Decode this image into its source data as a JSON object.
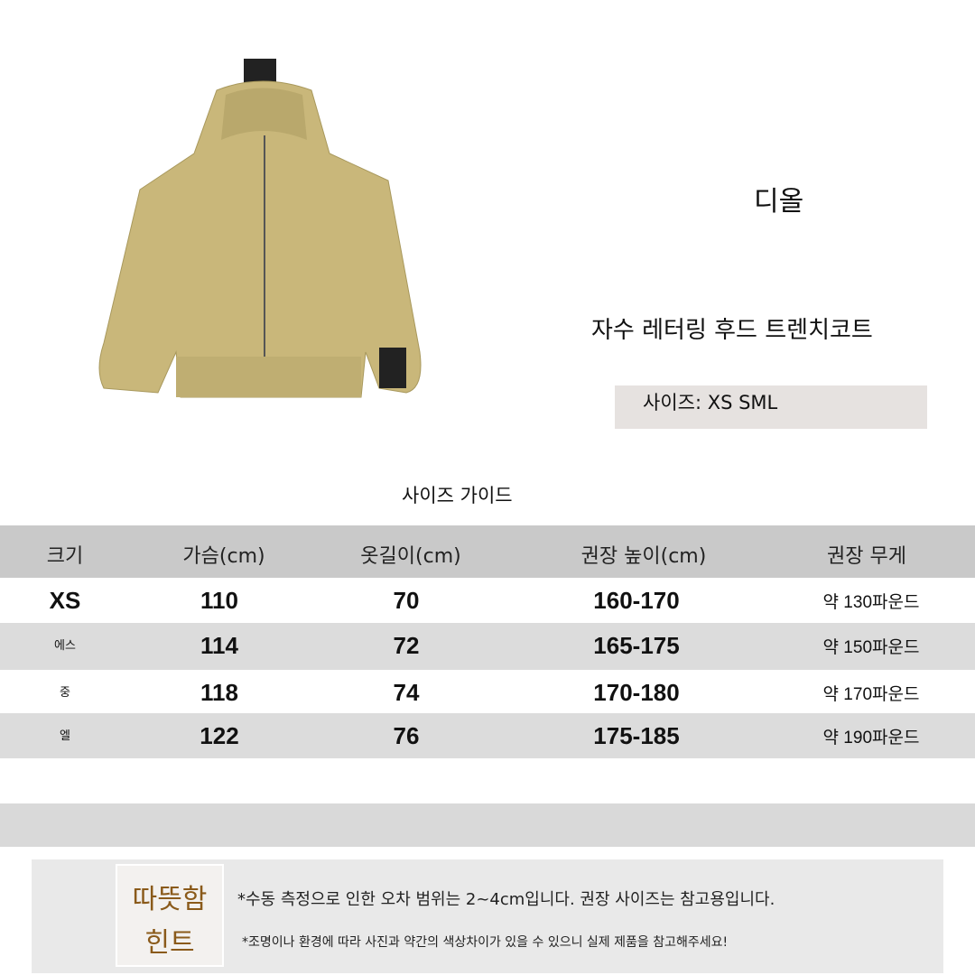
{
  "product": {
    "brand": "디올",
    "name": "자수 레터링 후드 트렌치코트",
    "sizes_label": "사이즈: XS SML",
    "jacket_color": "#c9b77a"
  },
  "guide": {
    "title": "사이즈 가이드",
    "headers": [
      "크기",
      "가슴(cm)",
      "옷길이(cm)",
      "권장 높이(cm)",
      "권장 무게"
    ],
    "rows": [
      [
        "XS",
        "110",
        "70",
        "160-170",
        "약 130파운드"
      ],
      [
        "에스",
        "114",
        "72",
        "165-175",
        "약 150파운드"
      ],
      [
        "중",
        "118",
        "74",
        "170-180",
        "약 170파운드"
      ],
      [
        "엘",
        "122",
        "76",
        "175-185",
        "약 190파운드"
      ]
    ]
  },
  "tip": {
    "badge_line1": "따뜻함",
    "badge_line2": "힌트",
    "note1": "*수동 측정으로 인한 오차 범위는 2~4cm입니다. 권장 사이즈는 참고용입니다.",
    "note2": "*조명이나 환경에 따라 사진과 약간의 색상차이가 있을 수 있으니 실제 제품을 참고해주세요!"
  }
}
